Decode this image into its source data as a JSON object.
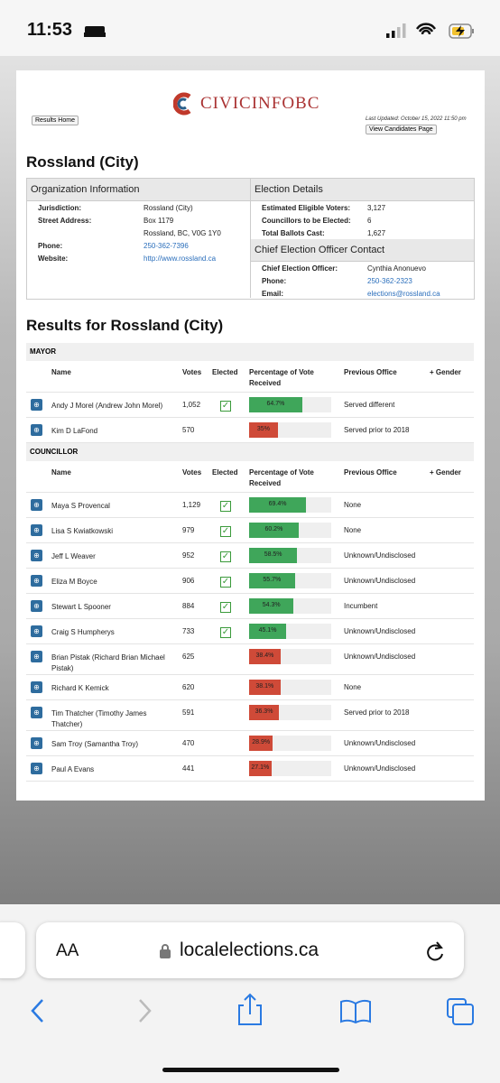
{
  "status_bar": {
    "time": "11:53"
  },
  "header": {
    "logo": "CIVICINFOBC",
    "results_home": "Results Home",
    "last_updated": "Last Updated: October 15, 2022 11:50 pm",
    "view_candidates": "View Candidates Page"
  },
  "page_title": "Rossland (City)",
  "organization": {
    "heading": "Organization Information",
    "rows": [
      {
        "label": "Jurisdiction:",
        "value": [
          "Rossland (City)"
        ]
      },
      {
        "label": "Street Address:",
        "value": [
          "Box 1179",
          "Rossland, BC, V0G 1Y0"
        ]
      },
      {
        "label": "Phone:",
        "value": [
          "250-362-7396"
        ],
        "link": true
      },
      {
        "label": "Website:",
        "value": [
          "http://www.rossland.ca"
        ],
        "link": true
      }
    ]
  },
  "election_details": {
    "heading": "Election Details",
    "rows": [
      {
        "label": "Estimated Eligible Voters:",
        "value": "3,127"
      },
      {
        "label": "Councillors to be Elected:",
        "value": "6"
      },
      {
        "label": "Total Ballots Cast:",
        "value": "1,627"
      }
    ]
  },
  "officer": {
    "heading": "Chief Election Officer Contact",
    "rows": [
      {
        "label": "Chief Election Officer:",
        "value": "Cynthia Anonuevo"
      },
      {
        "label": "Phone:",
        "value": "250-362-2323",
        "link": true
      },
      {
        "label": "Email:",
        "value": "elections@rossland.ca",
        "link": true
      }
    ]
  },
  "results_title": "Results for Rossland (City)",
  "columns": [
    "Name",
    "Votes",
    "Elected",
    "Percentage of Vote Received",
    "Previous Office",
    "+ Gender"
  ],
  "sections": [
    {
      "title": "MAYOR",
      "candidates": [
        {
          "name": "Andy J Morel (Andrew John Morel)",
          "votes": "1,052",
          "elected": true,
          "percent": 64.7,
          "percent_label": "64.7%",
          "previous": "Served different"
        },
        {
          "name": "Kim D LaFond",
          "votes": "570",
          "elected": false,
          "percent": 35,
          "percent_label": "35%",
          "previous": "Served prior to 2018"
        }
      ]
    },
    {
      "title": "COUNCILLOR",
      "candidates": [
        {
          "name": "Maya S Provencal",
          "votes": "1,129",
          "elected": true,
          "percent": 69.4,
          "percent_label": "69.4%",
          "previous": "None"
        },
        {
          "name": "Lisa S Kwiatkowski",
          "votes": "979",
          "elected": true,
          "percent": 60.2,
          "percent_label": "60.2%",
          "previous": "None"
        },
        {
          "name": "Jeff L Weaver",
          "votes": "952",
          "elected": true,
          "percent": 58.5,
          "percent_label": "58.5%",
          "previous": "Unknown/Undisclosed"
        },
        {
          "name": "Eliza M Boyce",
          "votes": "906",
          "elected": true,
          "percent": 55.7,
          "percent_label": "55.7%",
          "previous": "Unknown/Undisclosed"
        },
        {
          "name": "Stewart L Spooner",
          "votes": "884",
          "elected": true,
          "percent": 54.3,
          "percent_label": "54.3%",
          "previous": "Incumbent"
        },
        {
          "name": "Craig S Humpherys",
          "votes": "733",
          "elected": true,
          "percent": 45.1,
          "percent_label": "45.1%",
          "previous": "Unknown/Undisclosed"
        },
        {
          "name": "Brian Pistak (Richard Brian Michael Pistak)",
          "votes": "625",
          "elected": false,
          "percent": 38.4,
          "percent_label": "38.4%",
          "previous": "Unknown/Undisclosed"
        },
        {
          "name": "Richard K Kemick",
          "votes": "620",
          "elected": false,
          "percent": 38.1,
          "percent_label": "38.1%",
          "previous": "None"
        },
        {
          "name": "Tim Thatcher (Timothy James Thatcher)",
          "votes": "591",
          "elected": false,
          "percent": 36.3,
          "percent_label": "36.3%",
          "previous": "Served prior to 2018"
        },
        {
          "name": "Sam Troy (Samantha Troy)",
          "votes": "470",
          "elected": false,
          "percent": 28.9,
          "percent_label": "28.9%",
          "previous": "Unknown/Undisclosed"
        },
        {
          "name": "Paul A Evans",
          "votes": "441",
          "elected": false,
          "percent": 27.1,
          "percent_label": "27.1%",
          "previous": "Unknown/Undisclosed"
        }
      ]
    }
  ],
  "browser": {
    "text_size": "AA",
    "url": "localelections.ca"
  }
}
